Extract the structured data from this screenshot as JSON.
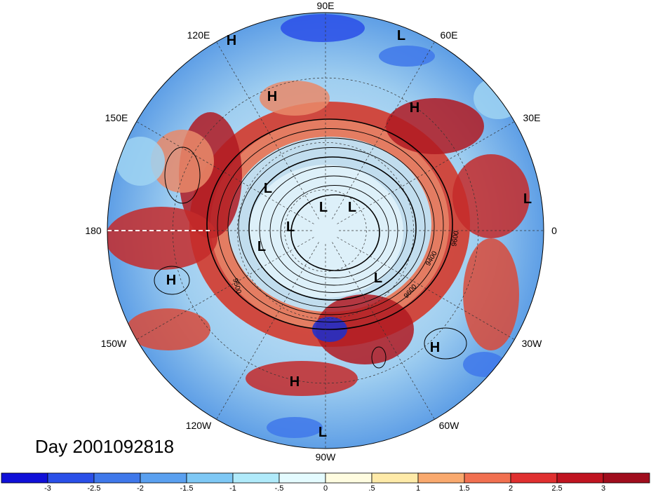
{
  "title": "Day 2001092818",
  "longitude_labels": {
    "lon_90E": "90E",
    "lon_60E": "60E",
    "lon_30E": "30E",
    "lon_0": "0",
    "lon_30W": "30W",
    "lon_60W": "60W",
    "lon_90W": "90W",
    "lon_120W": "120W",
    "lon_150W": "150W",
    "lon_180": "180",
    "lon_150E": "150E",
    "lon_120E": "120E"
  },
  "pressure_centers": [
    {
      "label": "H",
      "lon": 125,
      "lat": 20
    },
    {
      "label": "H",
      "lon": 118,
      "lat": 45
    },
    {
      "label": "H",
      "lon": 52,
      "lat": 38
    },
    {
      "label": "H",
      "lon": -165,
      "lat": 25
    },
    {
      "label": "H",
      "lon": -95,
      "lat": 40
    },
    {
      "label": "H",
      "lon": -35,
      "lat": 22
    },
    {
      "label": "L",
      "lon": 70,
      "lat": 10
    },
    {
      "label": "L",
      "lon": 3,
      "lat": 12
    },
    {
      "label": "L",
      "lon": 166,
      "lat": 70
    },
    {
      "label": "L",
      "lon": 95,
      "lat": 82
    },
    {
      "label": "L",
      "lon": 45,
      "lat": 76
    },
    {
      "label": "L",
      "lon": 160,
      "lat": 80
    },
    {
      "label": "L",
      "lon": -170,
      "lat": 70
    },
    {
      "label": "L",
      "lon": -55,
      "lat": 65
    },
    {
      "label": "L",
      "lon": -90,
      "lat": 6
    }
  ],
  "contour_labels": [
    "9500",
    "9600",
    "9400",
    "9600"
  ],
  "colorbar": {
    "tick_labels": [
      "-3",
      "-2.5",
      "-2",
      "-1.5",
      "-1",
      "-.5",
      "0",
      ".5",
      "1",
      "1.5",
      "2",
      "2.5",
      "3"
    ],
    "colors": [
      "#1010d8",
      "#2a4fe8",
      "#3f78ea",
      "#5aa0f0",
      "#7ec8f5",
      "#b0eafa",
      "#e4fbff",
      "#fffce0",
      "#feeaa8",
      "#f9a96e",
      "#f17050",
      "#e03030",
      "#c01420",
      "#a00d1d"
    ]
  }
}
